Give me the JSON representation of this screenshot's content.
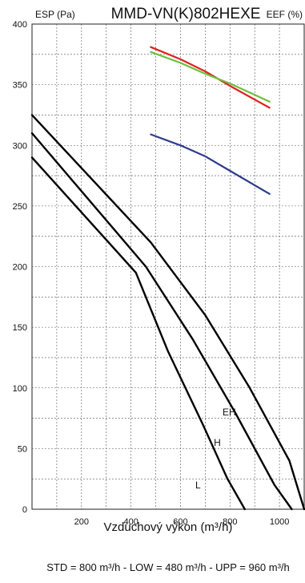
{
  "chart_data": {
    "type": "line",
    "title": "MMD-VN(K)802HEXE",
    "ylabel_left": "ESP (Pa)",
    "ylabel_right": "EEF (%)",
    "xlabel": "Vzduchový výkon (m³/h)",
    "xlim": [
      0,
      1100
    ],
    "ylim": [
      0,
      400
    ],
    "x_ticks": [
      "200",
      "400",
      "600",
      "800",
      "1000"
    ],
    "y_ticks": [
      "0",
      "50",
      "100",
      "150",
      "200",
      "250",
      "300",
      "350",
      "400"
    ],
    "grid": true,
    "series": [
      {
        "name": "EH",
        "color": "#000000",
        "x": [
          0,
          480,
          700,
          880,
          1040,
          1100
        ],
        "y": [
          325,
          220,
          160,
          100,
          40,
          0
        ]
      },
      {
        "name": "H",
        "color": "#000000",
        "x": [
          0,
          460,
          650,
          820,
          980,
          1050
        ],
        "y": [
          310,
          200,
          140,
          80,
          20,
          0
        ]
      },
      {
        "name": "L",
        "color": "#000000",
        "x": [
          0,
          420,
          550,
          690,
          790,
          860
        ],
        "y": [
          290,
          195,
          130,
          70,
          25,
          0
        ]
      },
      {
        "name": "",
        "color": "#e02020",
        "x": [
          480,
          600,
          700,
          800,
          960
        ],
        "y": [
          381,
          371,
          361,
          349,
          331
        ]
      },
      {
        "name": "",
        "color": "#6cc040",
        "x": [
          480,
          600,
          700,
          800,
          960
        ],
        "y": [
          377,
          368,
          359,
          351,
          336
        ]
      },
      {
        "name": "",
        "color": "#2e3b8c",
        "x": [
          480,
          600,
          700,
          800,
          960
        ],
        "y": [
          309,
          300,
          291,
          279,
          260
        ]
      }
    ],
    "footnote": "STD = 800 m³/h  -  LOW = 480 m³/h  -  UPP = 960 m³/h"
  }
}
